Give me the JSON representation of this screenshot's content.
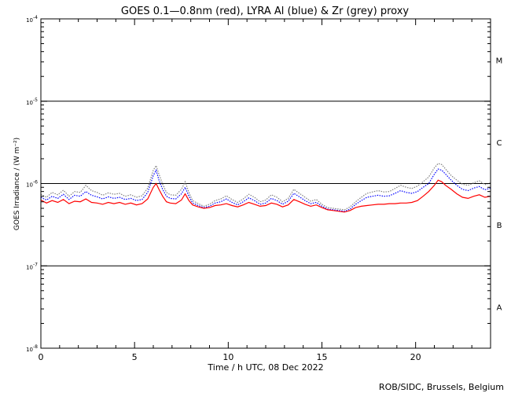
{
  "chart_data": {
    "type": "line",
    "title": "GOES 0.1—0.8nm (red), LYRA Al (blue) & Zr (grey) proxy",
    "xlabel": "Time / h UTC, 08 Dec 2022",
    "ylabel": "GOES Irradiance / (W m⁻²)",
    "xlim": [
      0,
      24
    ],
    "ylim_log10": [
      -8,
      -4
    ],
    "y_scale": "log",
    "x_ticks": [
      {
        "value": 0,
        "label": "0"
      },
      {
        "value": 5,
        "label": "5"
      },
      {
        "value": 10,
        "label": "10"
      },
      {
        "value": 15,
        "label": "15"
      },
      {
        "value": 20,
        "label": "20"
      }
    ],
    "y_ticks": [
      {
        "exp": -8,
        "base": "10",
        "sup": "-8"
      },
      {
        "exp": -7,
        "base": "10",
        "sup": "-7"
      },
      {
        "exp": -6,
        "base": "10",
        "sup": "-6"
      },
      {
        "exp": -5,
        "base": "10",
        "sup": "-5"
      },
      {
        "exp": -4,
        "base": "10",
        "sup": "-4"
      }
    ],
    "class_lines_log10": [
      -7,
      -6,
      -5
    ],
    "flare_classes": [
      {
        "label": "M",
        "log10": -4.5
      },
      {
        "label": "C",
        "log10": -5.5
      },
      {
        "label": "B",
        "log10": -6.5
      },
      {
        "label": "A",
        "log10": -7.5
      }
    ],
    "series": [
      {
        "name": "GOES 0.1—0.8nm",
        "color": "#ff0000",
        "x": [
          0,
          0.3,
          0.6,
          0.9,
          1.2,
          1.5,
          1.8,
          2.1,
          2.4,
          2.7,
          3.0,
          3.3,
          3.6,
          3.9,
          4.2,
          4.5,
          4.8,
          5.1,
          5.4,
          5.7,
          6.0,
          6.15,
          6.3,
          6.5,
          6.7,
          6.9,
          7.2,
          7.5,
          7.7,
          7.9,
          8.1,
          8.4,
          8.7,
          9.0,
          9.3,
          9.6,
          9.9,
          10.2,
          10.5,
          10.8,
          11.1,
          11.4,
          11.7,
          12.0,
          12.3,
          12.6,
          12.9,
          13.2,
          13.5,
          13.8,
          14.1,
          14.4,
          14.7,
          15.0,
          15.3,
          15.6,
          15.9,
          16.2,
          16.5,
          16.8,
          17.1,
          17.4,
          17.7,
          18.0,
          18.3,
          18.6,
          18.9,
          19.2,
          19.5,
          19.8,
          20.1,
          20.4,
          20.7,
          21.0,
          21.2,
          21.4,
          21.6,
          21.9,
          22.2,
          22.5,
          22.8,
          23.1,
          23.4,
          23.7,
          24.0
        ],
        "y": [
          6.3e-07,
          5.8e-07,
          6.2e-07,
          5.9e-07,
          6.4e-07,
          5.7e-07,
          6.1e-07,
          6e-07,
          6.5e-07,
          5.9e-07,
          5.8e-07,
          5.6e-07,
          5.9e-07,
          5.7e-07,
          5.9e-07,
          5.6e-07,
          5.8e-07,
          5.5e-07,
          5.7e-07,
          6.5e-07,
          9e-07,
          1e-06,
          8.5e-07,
          7e-07,
          6e-07,
          5.8e-07,
          5.7e-07,
          6.3e-07,
          7.5e-07,
          6.2e-07,
          5.5e-07,
          5.2e-07,
          5e-07,
          5.1e-07,
          5.4e-07,
          5.5e-07,
          5.7e-07,
          5.4e-07,
          5.2e-07,
          5.5e-07,
          5.9e-07,
          5.6e-07,
          5.3e-07,
          5.4e-07,
          5.8e-07,
          5.6e-07,
          5.2e-07,
          5.5e-07,
          6.4e-07,
          6e-07,
          5.6e-07,
          5.3e-07,
          5.5e-07,
          5.1e-07,
          4.8e-07,
          4.7e-07,
          4.6e-07,
          4.5e-07,
          4.7e-07,
          5.1e-07,
          5.3e-07,
          5.4e-07,
          5.5e-07,
          5.6e-07,
          5.6e-07,
          5.7e-07,
          5.7e-07,
          5.8e-07,
          5.8e-07,
          5.9e-07,
          6.2e-07,
          7e-07,
          8e-07,
          9.5e-07,
          1.1e-06,
          1.05e-06,
          9.5e-07,
          8.5e-07,
          7.5e-07,
          6.8e-07,
          6.6e-07,
          7e-07,
          7.3e-07,
          6.8e-07,
          7e-07
        ]
      },
      {
        "name": "LYRA Al",
        "color": "#0000ff",
        "x": [
          0,
          0.3,
          0.6,
          0.9,
          1.2,
          1.5,
          1.8,
          2.1,
          2.4,
          2.7,
          3.0,
          3.3,
          3.6,
          3.9,
          4.2,
          4.5,
          4.8,
          5.1,
          5.4,
          5.7,
          6.0,
          6.15,
          6.3,
          6.5,
          6.7,
          6.9,
          7.2,
          7.5,
          7.7,
          7.9,
          8.1,
          8.4,
          8.7,
          9.0,
          9.3,
          9.6,
          9.9,
          10.2,
          10.5,
          10.8,
          11.1,
          11.4,
          11.7,
          12.0,
          12.3,
          12.6,
          12.9,
          13.2,
          13.5,
          13.8,
          14.1,
          14.4,
          14.7,
          15.0,
          15.3,
          15.6,
          15.9,
          16.2,
          16.5,
          16.8,
          17.1,
          17.4,
          17.7,
          18.0,
          18.3,
          18.6,
          18.9,
          19.2,
          19.5,
          19.8,
          20.1,
          20.4,
          20.7,
          21.0,
          21.2,
          21.4,
          21.6,
          21.9,
          22.2,
          22.5,
          22.8,
          23.1,
          23.4,
          23.7,
          24.0
        ],
        "y": [
          6.8e-07,
          6.3e-07,
          7e-07,
          6.6e-07,
          7.4e-07,
          6.4e-07,
          7.2e-07,
          7e-07,
          8e-07,
          7.2e-07,
          6.9e-07,
          6.5e-07,
          6.9e-07,
          6.6e-07,
          6.8e-07,
          6.4e-07,
          6.6e-07,
          6.2e-07,
          6.4e-07,
          7.8e-07,
          1.25e-06,
          1.45e-06,
          1.1e-06,
          8.5e-07,
          7e-07,
          6.6e-07,
          6.5e-07,
          7.5e-07,
          9e-07,
          7e-07,
          5.8e-07,
          5.4e-07,
          5.1e-07,
          5.3e-07,
          5.8e-07,
          6e-07,
          6.5e-07,
          5.9e-07,
          5.5e-07,
          6e-07,
          6.7e-07,
          6.2e-07,
          5.6e-07,
          5.8e-07,
          6.6e-07,
          6.2e-07,
          5.6e-07,
          6.1e-07,
          7.6e-07,
          6.9e-07,
          6.2e-07,
          5.7e-07,
          5.9e-07,
          5.3e-07,
          4.9e-07,
          4.8e-07,
          4.7e-07,
          4.6e-07,
          4.9e-07,
          5.6e-07,
          6.2e-07,
          6.8e-07,
          7e-07,
          7.2e-07,
          7e-07,
          7.1e-07,
          7.6e-07,
          8.2e-07,
          7.8e-07,
          7.6e-07,
          8e-07,
          9e-07,
          1e-06,
          1.3e-06,
          1.5e-06,
          1.45e-06,
          1.3e-06,
          1.1e-06,
          9.5e-07,
          8.5e-07,
          8.2e-07,
          8.8e-07,
          9.2e-07,
          8.4e-07,
          8.8e-07
        ]
      },
      {
        "name": "Zr",
        "color": "#808080",
        "x": [
          0,
          0.3,
          0.6,
          0.9,
          1.2,
          1.5,
          1.8,
          2.1,
          2.4,
          2.7,
          3.0,
          3.3,
          3.6,
          3.9,
          4.2,
          4.5,
          4.8,
          5.1,
          5.4,
          5.7,
          6.0,
          6.15,
          6.3,
          6.5,
          6.7,
          6.9,
          7.2,
          7.5,
          7.7,
          7.9,
          8.1,
          8.4,
          8.7,
          9.0,
          9.3,
          9.6,
          9.9,
          10.2,
          10.5,
          10.8,
          11.1,
          11.4,
          11.7,
          12.0,
          12.3,
          12.6,
          12.9,
          13.2,
          13.5,
          13.8,
          14.1,
          14.4,
          14.7,
          15.0,
          15.3,
          15.6,
          15.9,
          16.2,
          16.5,
          16.8,
          17.1,
          17.4,
          17.7,
          18.0,
          18.3,
          18.6,
          18.9,
          19.2,
          19.5,
          19.8,
          20.1,
          20.4,
          20.7,
          21.0,
          21.2,
          21.4,
          21.6,
          21.9,
          22.2,
          22.5,
          22.8,
          23.1,
          23.4,
          23.7,
          24.0
        ],
        "y": [
          7.4e-07,
          6.8e-07,
          7.8e-07,
          7.3e-07,
          8.3e-07,
          7e-07,
          8e-07,
          7.8e-07,
          9.5e-07,
          8.2e-07,
          7.8e-07,
          7.2e-07,
          7.7e-07,
          7.4e-07,
          7.6e-07,
          7e-07,
          7.3e-07,
          6.8e-07,
          7.1e-07,
          8.8e-07,
          1.45e-06,
          1.65e-06,
          1.3e-06,
          9.8e-07,
          7.8e-07,
          7.3e-07,
          7.2e-07,
          8.5e-07,
          1.05e-06,
          7.8e-07,
          6.2e-07,
          5.7e-07,
          5.3e-07,
          5.6e-07,
          6.2e-07,
          6.5e-07,
          7.1e-07,
          6.4e-07,
          5.9e-07,
          6.5e-07,
          7.4e-07,
          6.8e-07,
          6e-07,
          6.3e-07,
          7.3e-07,
          6.8e-07,
          6e-07,
          6.6e-07,
          8.5e-07,
          7.6e-07,
          6.8e-07,
          6.1e-07,
          6.4e-07,
          5.6e-07,
          5.1e-07,
          5e-07,
          4.9e-07,
          4.8e-07,
          5.2e-07,
          6e-07,
          6.8e-07,
          7.6e-07,
          7.9e-07,
          8.2e-07,
          7.9e-07,
          8e-07,
          8.7e-07,
          9.5e-07,
          9e-07,
          8.7e-07,
          9.3e-07,
          1.05e-06,
          1.2e-06,
          1.55e-06,
          1.75e-06,
          1.7e-06,
          1.5e-06,
          1.25e-06,
          1.1e-06,
          9.8e-07,
          9.5e-07,
          1.02e-06,
          1.08e-06,
          9.7e-07,
          1.02e-06
        ]
      }
    ],
    "credit": "ROB/SIDC, Brussels, Belgium"
  }
}
